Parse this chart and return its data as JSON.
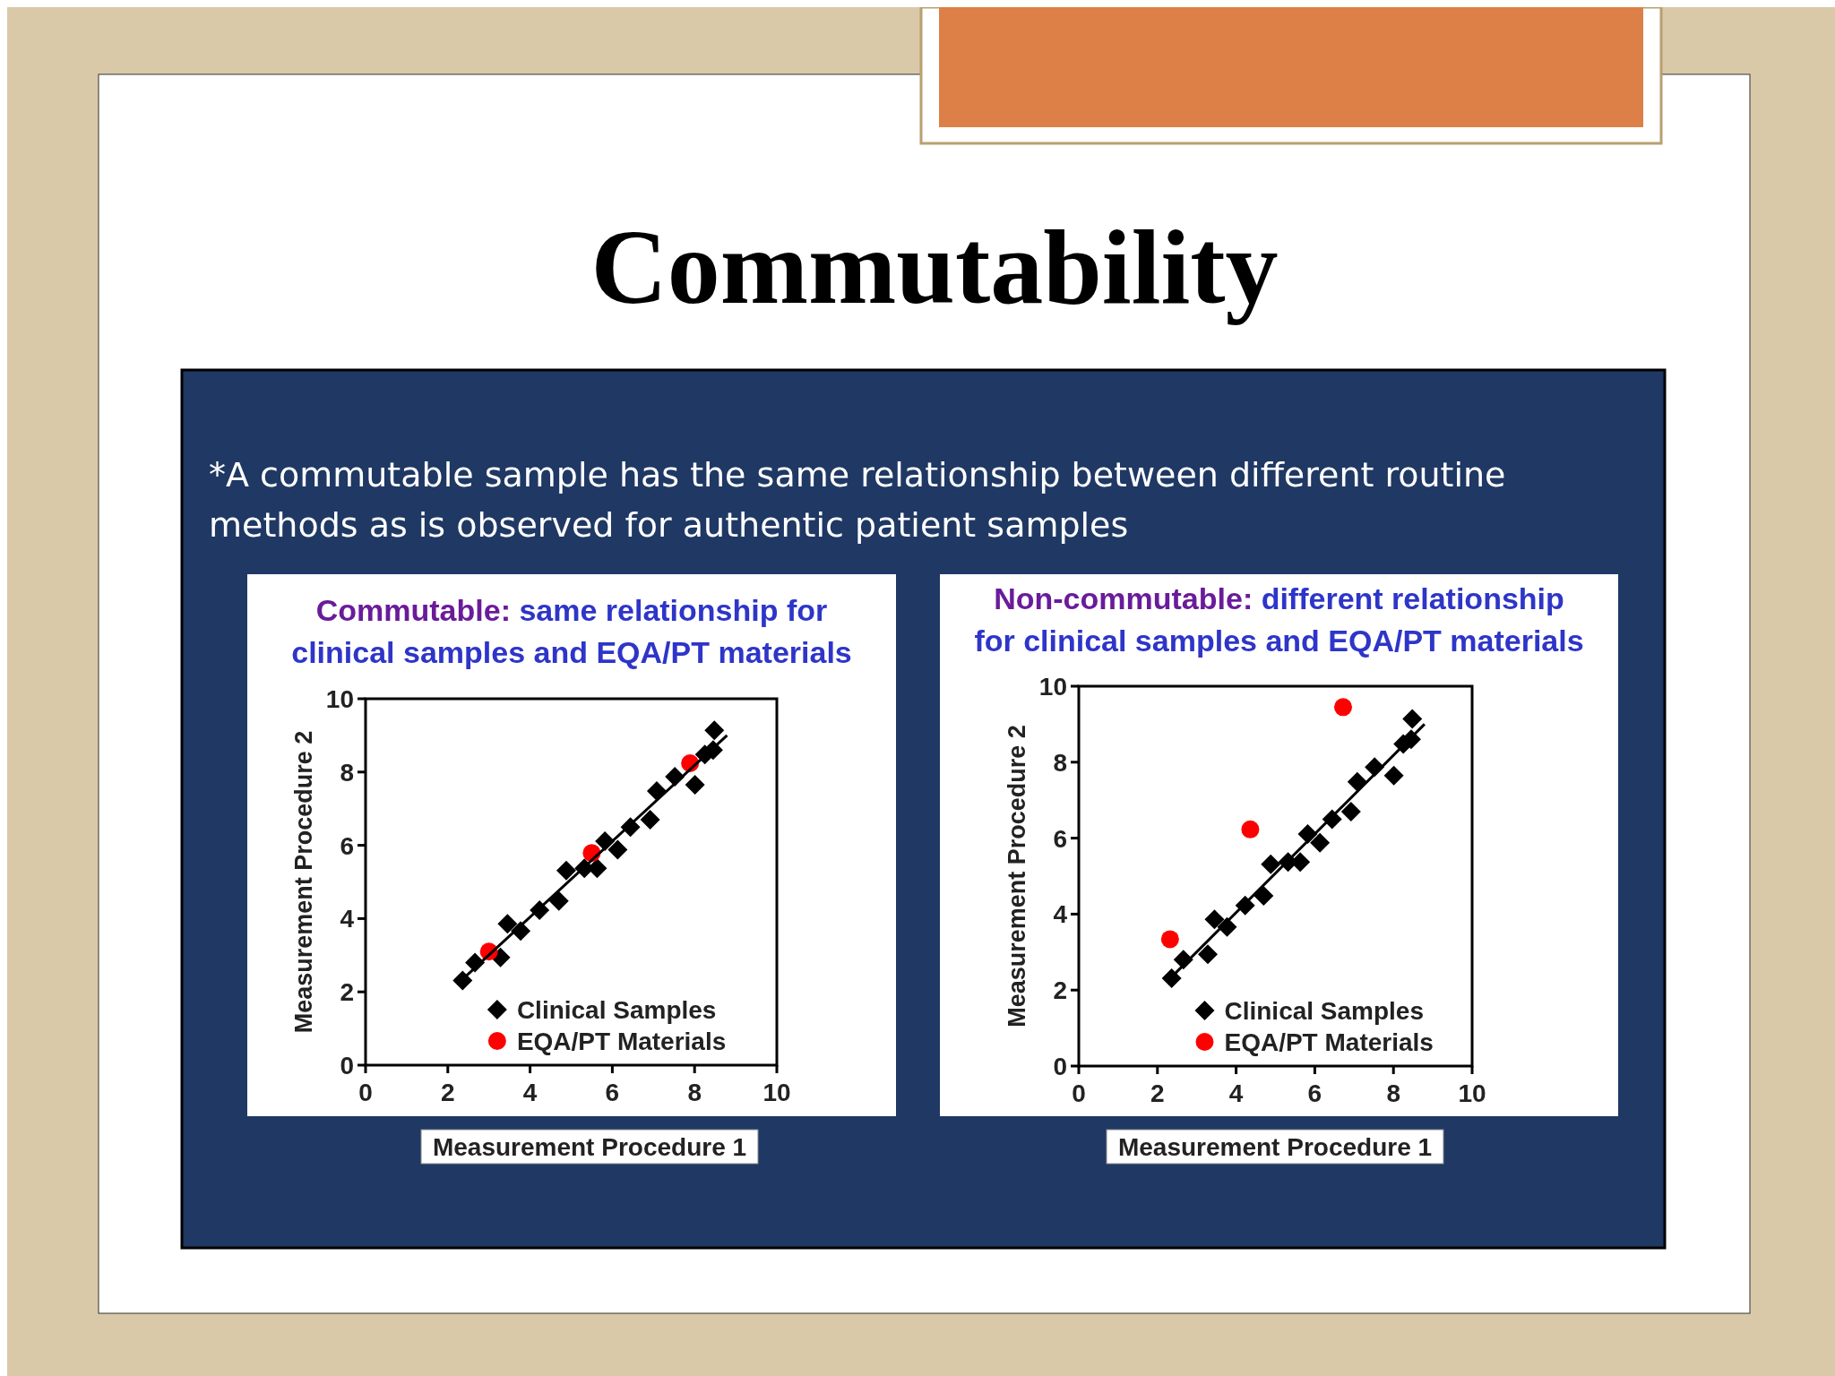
{
  "chart_data": [
    {
      "type": "scatter",
      "title": "Commutable: same relationship for clinical samples and EQA/PT materials",
      "xlabel": "Measurement Procedure 1",
      "ylabel": "Measurement Procedure 2",
      "annotations": [
        "Commutability",
        "*A commutable sample has the same relationship between different routine methods as is observed for authentic patient samples"
      ],
      "xlim": [
        0,
        10
      ],
      "ylim": [
        0,
        10
      ],
      "xticks": [
        0,
        2,
        4,
        6,
        8,
        10
      ],
      "yticks": [
        0,
        2,
        4,
        6,
        8,
        10
      ],
      "grid": false,
      "legend": "bottom right",
      "series": [
        {
          "name": "Clinical Samples",
          "color": "#000000",
          "marker": "diamond",
          "x": [
            2.36,
            2.66,
            3.28,
            3.45,
            3.77,
            4.23,
            4.7,
            4.88,
            5.32,
            5.63,
            5.82,
            6.13,
            6.44,
            6.92,
            7.08,
            7.52,
            8.01,
            8.25,
            8.45,
            8.48
          ],
          "values": [
            2.31,
            2.8,
            2.94,
            3.86,
            3.66,
            4.23,
            4.48,
            5.31,
            5.37,
            5.37,
            6.11,
            5.88,
            6.5,
            6.7,
            7.48,
            7.87,
            7.65,
            8.48,
            8.6,
            9.14
          ]
        },
        {
          "name": "EQA/PT Materials",
          "color": "#ff0000",
          "marker": "circle",
          "x": [
            3.0,
            5.5,
            7.89
          ],
          "values": [
            3.1,
            5.79,
            8.24
          ]
        },
        {
          "type": "line",
          "color": "#000000",
          "marker": "none",
          "x": [
            2.24,
            8.79
          ],
          "values": [
            2.22,
            9.0
          ]
        }
      ]
    },
    {
      "type": "scatter",
      "title": "Non-commutable: different relationship for clinical samples and EQA/PT materials",
      "xlabel": "Measurement Procedure 1",
      "ylabel": "Measurement Procedure 2",
      "xlim": [
        0,
        10
      ],
      "ylim": [
        0,
        10
      ],
      "xticks": [
        0,
        2,
        4,
        6,
        8,
        10
      ],
      "yticks": [
        0,
        2,
        4,
        6,
        8,
        10
      ],
      "grid": false,
      "legend": "bottom right",
      "series": [
        {
          "name": "Clinical Samples",
          "color": "#000000",
          "marker": "diamond",
          "x": [
            2.36,
            2.66,
            3.28,
            3.45,
            3.77,
            4.23,
            4.7,
            4.88,
            5.32,
            5.63,
            5.82,
            6.13,
            6.44,
            6.92,
            7.08,
            7.52,
            8.01,
            8.25,
            8.45,
            8.48
          ],
          "values": [
            2.31,
            2.8,
            2.94,
            3.86,
            3.66,
            4.23,
            4.48,
            5.31,
            5.37,
            5.37,
            6.11,
            5.88,
            6.5,
            6.7,
            7.48,
            7.87,
            7.65,
            8.48,
            8.6,
            9.14
          ]
        },
        {
          "name": "EQA/PT Materials",
          "color": "#ff0000",
          "marker": "circle",
          "x": [
            2.32,
            4.36,
            6.72
          ],
          "values": [
            3.34,
            6.23,
            9.45
          ]
        },
        {
          "type": "line",
          "color": "#000000",
          "marker": "none",
          "x": [
            2.24,
            8.79
          ],
          "values": [
            2.22,
            9.0
          ]
        }
      ]
    }
  ]
}
